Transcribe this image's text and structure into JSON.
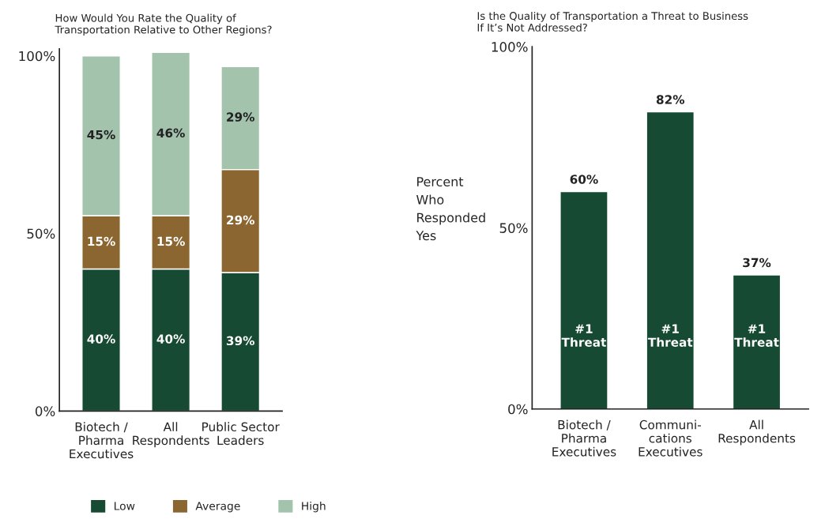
{
  "chart_data": [
    {
      "type": "bar",
      "title": "How Would You Rate the Quality of\nTransportation Relative to Other Regions?",
      "categories": [
        "Biotech /\nPharma\nExecutives",
        "All\nRespondents",
        "Public Sector\nLeaders"
      ],
      "stacked": true,
      "series": [
        {
          "name": "Low",
          "color": "#174a33",
          "values": [
            40,
            40,
            39
          ],
          "value_labels": [
            "40%",
            "40%",
            "39%"
          ]
        },
        {
          "name": "Average",
          "color": "#8c6631",
          "values": [
            15,
            15,
            29
          ],
          "value_labels": [
            "15%",
            "15%",
            "29%"
          ]
        },
        {
          "name": "High",
          "color": "#a3c3ad",
          "values": [
            45,
            46,
            29
          ],
          "value_labels": [
            "45%",
            "46%",
            "29%"
          ]
        }
      ],
      "ylim": [
        0,
        102
      ],
      "yticks": [
        {
          "value": 0,
          "label": "0%"
        },
        {
          "value": 50,
          "label": "50%"
        },
        {
          "value": 100,
          "label": "100%"
        }
      ],
      "legend": "bottom",
      "grid": false
    },
    {
      "type": "bar",
      "title": "Is the Quality of Transportation a Threat to Business\nIf It’s Not Addressed?",
      "ylabel": "Percent\nWho\nResponded\nYes",
      "categories": [
        "Biotech /\nPharma\nExecutives",
        "Communi-\ncations\nExecutives",
        "All\nRespondents"
      ],
      "values": [
        60,
        82,
        37
      ],
      "color": "#174a33",
      "value_labels": [
        "60%",
        "82%",
        "37%"
      ],
      "annotations": [
        "#1\nThreat",
        "#1\nThreat",
        "#1\nThreat"
      ],
      "ylim": [
        0,
        100
      ],
      "yticks": [
        {
          "value": 0,
          "label": "0%"
        },
        {
          "value": 50,
          "label": "50%"
        },
        {
          "value": 100,
          "label": "100%"
        }
      ],
      "grid": false
    }
  ]
}
